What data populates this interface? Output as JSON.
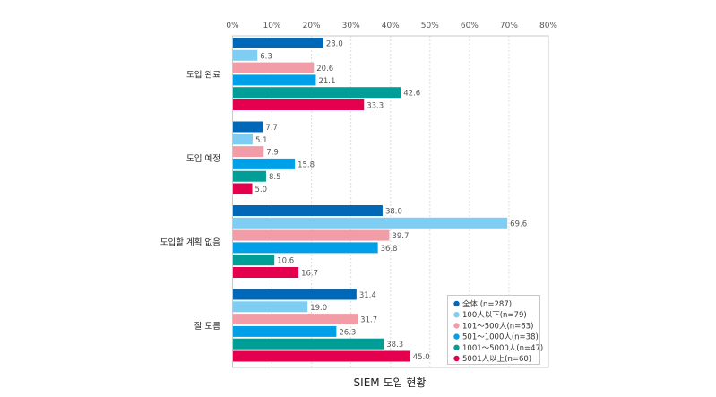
{
  "chart_data": {
    "type": "bar",
    "orientation": "horizontal",
    "title": "SIEM 도입 현황",
    "xlabel": "",
    "ylabel": "",
    "xlim": [
      0,
      80
    ],
    "x_ticks": [
      "0%",
      "10%",
      "20%",
      "30%",
      "40%",
      "50%",
      "60%",
      "70%",
      "80%"
    ],
    "x_tick_values": [
      0,
      10,
      20,
      30,
      40,
      50,
      60,
      70,
      80
    ],
    "grid": true,
    "legend_position": "bottom-right",
    "categories": [
      "도입 완료",
      "도입 예정",
      "도입할 계획 없음",
      "잘 모름"
    ],
    "series": [
      {
        "name": "全体 (n=287)",
        "color": "#0068b7",
        "values": [
          23.0,
          7.7,
          38.0,
          31.4
        ]
      },
      {
        "name": "100人以下(n=79)",
        "color": "#7ecef4",
        "values": [
          6.3,
          5.1,
          69.6,
          19.0
        ]
      },
      {
        "name": "101～500人(n=63)",
        "color": "#f19ca7",
        "values": [
          20.6,
          7.9,
          39.7,
          31.7
        ]
      },
      {
        "name": "501～1000人(n=38)",
        "color": "#00a0e9",
        "values": [
          21.1,
          15.8,
          36.8,
          26.3
        ]
      },
      {
        "name": "1001～5000人(n=47)",
        "color": "#009e96",
        "values": [
          42.6,
          8.5,
          10.6,
          38.3
        ]
      },
      {
        "name": "5001人以上(n=60)",
        "color": "#e4004f",
        "values": [
          33.3,
          5.0,
          16.7,
          45.0
        ]
      }
    ]
  }
}
